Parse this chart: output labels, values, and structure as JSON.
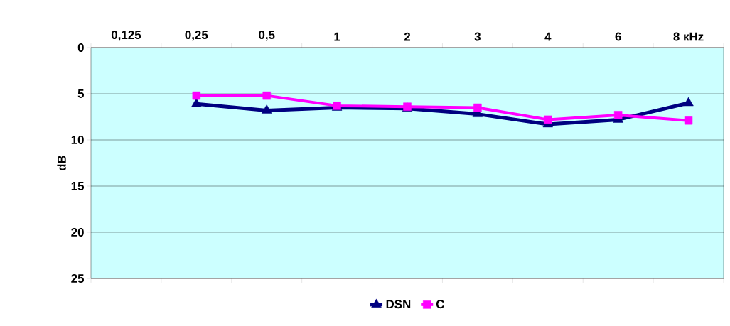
{
  "chart_data": {
    "type": "line",
    "ylabel": "dB",
    "categories": [
      "0,125",
      "0,25",
      "0,5",
      "1",
      "2",
      "3",
      "4",
      "6",
      "8 кHz"
    ],
    "series": [
      {
        "name": "DSN",
        "color": "#000080",
        "marker": "triangle",
        "values": [
          null,
          6.1,
          6.8,
          6.5,
          6.6,
          7.2,
          8.3,
          7.8,
          6.0
        ]
      },
      {
        "name": "C",
        "color": "#ff00ff",
        "marker": "square",
        "values": [
          null,
          5.2,
          5.2,
          6.3,
          6.4,
          6.5,
          7.8,
          7.3,
          7.9
        ]
      }
    ],
    "ylim": [
      25,
      0
    ],
    "yticks": [
      0,
      5,
      10,
      15,
      20,
      25
    ],
    "grid": "y",
    "legend": "bottom"
  }
}
